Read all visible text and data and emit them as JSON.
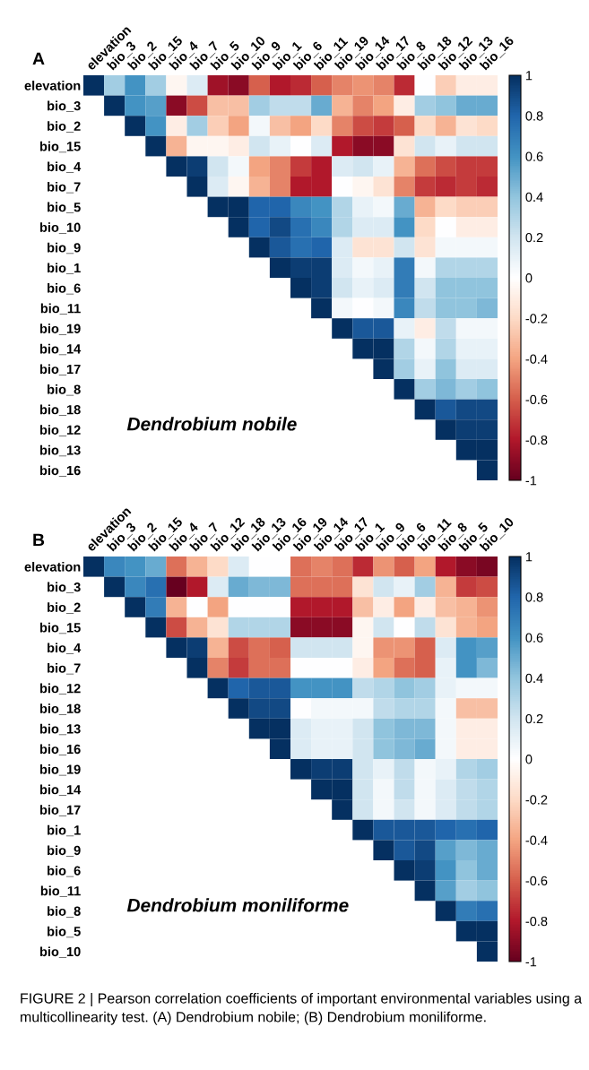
{
  "chart_data": [
    {
      "type": "heatmap",
      "title": "Dendrobium nobile",
      "annotations": [
        "A"
      ],
      "clim": [
        -1,
        1
      ],
      "cticks": [
        -1,
        -0.8,
        -0.6,
        -0.4,
        -0.2,
        0,
        0.2,
        0.4,
        0.6,
        0.8,
        1
      ],
      "categories": [
        "elevation",
        "bio_3",
        "bio_2",
        "bio_15",
        "bio_4",
        "bio_7",
        "bio_5",
        "bio_10",
        "bio_9",
        "bio_1",
        "bio_6",
        "bio_11",
        "bio_19",
        "bio_14",
        "bio_17",
        "bio_8",
        "bio_18",
        "bio_12",
        "bio_13",
        "bio_16"
      ],
      "y_categories": [
        "elevation",
        "bio_3",
        "bio_2",
        "bio_15",
        "bio_4",
        "bio_7",
        "bio_5",
        "bio_10",
        "bio_9",
        "bio_1",
        "bio_6",
        "bio_11",
        "bio_19",
        "bio_14",
        "bio_17",
        "bio_8",
        "bio_18",
        "bio_12",
        "bio_13",
        "bio_16"
      ],
      "cells": [
        [
          1,
          0.35,
          0.6,
          0.35,
          -0.05,
          0.15,
          -0.85,
          -0.9,
          -0.6,
          -0.8,
          -0.75,
          -0.6,
          -0.5,
          -0.45,
          -0.5,
          -0.75,
          0,
          -0.25,
          -0.1,
          -0.1
        ],
        [
          null,
          1,
          0.6,
          0.55,
          -0.9,
          -0.65,
          -0.3,
          -0.3,
          0.35,
          0.25,
          0.25,
          0.5,
          -0.35,
          -0.5,
          -0.4,
          -0.1,
          0.35,
          0.4,
          0.5,
          0.5
        ],
        [
          null,
          null,
          1,
          0.6,
          -0.1,
          0.35,
          -0.25,
          -0.4,
          0.05,
          -0.3,
          -0.4,
          -0.2,
          -0.5,
          -0.65,
          -0.7,
          -0.6,
          -0.2,
          -0.35,
          -0.15,
          -0.2
        ],
        [
          null,
          null,
          null,
          1,
          -0.35,
          -0.05,
          -0.05,
          -0.1,
          0.2,
          0.1,
          0,
          0.15,
          -0.8,
          -0.9,
          -0.9,
          -0.15,
          0.2,
          0.1,
          0.2,
          0.2
        ],
        [
          null,
          null,
          null,
          null,
          1,
          0.95,
          0.2,
          0.05,
          -0.4,
          -0.5,
          -0.7,
          -0.8,
          0.15,
          0.2,
          0.1,
          -0.35,
          -0.55,
          -0.65,
          -0.7,
          -0.7
        ],
        [
          null,
          null,
          null,
          null,
          null,
          1,
          0.15,
          -0.05,
          -0.35,
          -0.5,
          -0.8,
          -0.8,
          0,
          -0.05,
          -0.15,
          -0.5,
          -0.7,
          -0.75,
          -0.7,
          -0.75
        ],
        [
          null,
          null,
          null,
          null,
          null,
          null,
          1,
          1,
          0.8,
          0.8,
          0.65,
          0.6,
          0.3,
          0.1,
          0.05,
          0.5,
          -0.35,
          -0.2,
          -0.25,
          -0.25
        ],
        [
          null,
          null,
          null,
          null,
          null,
          null,
          null,
          1,
          0.8,
          0.9,
          0.75,
          0.65,
          0.3,
          0.15,
          0.15,
          0.6,
          -0.2,
          0,
          -0.1,
          -0.1
        ],
        [
          null,
          null,
          null,
          null,
          null,
          null,
          null,
          null,
          1,
          0.85,
          0.75,
          0.8,
          0.15,
          -0.15,
          -0.15,
          0.2,
          -0.15,
          0.05,
          0.05,
          0.05
        ],
        [
          null,
          null,
          null,
          null,
          null,
          null,
          null,
          null,
          null,
          1,
          0.95,
          0.95,
          0.15,
          0.05,
          0.1,
          0.7,
          0.05,
          0.3,
          0.3,
          0.3
        ],
        [
          null,
          null,
          null,
          null,
          null,
          null,
          null,
          null,
          null,
          null,
          1,
          0.95,
          0.2,
          0.1,
          0.15,
          0.7,
          0.2,
          0.4,
          0.4,
          0.4
        ],
        [
          null,
          null,
          null,
          null,
          null,
          null,
          null,
          null,
          null,
          null,
          null,
          1,
          0.05,
          0,
          0.05,
          0.65,
          0.25,
          0.4,
          0.4,
          0.45
        ],
        [
          null,
          null,
          null,
          null,
          null,
          null,
          null,
          null,
          null,
          null,
          null,
          null,
          1,
          0.85,
          0.85,
          0.1,
          -0.1,
          0.25,
          0.05,
          0.05
        ],
        [
          null,
          null,
          null,
          null,
          null,
          null,
          null,
          null,
          null,
          null,
          null,
          null,
          null,
          1,
          1,
          0.3,
          0.05,
          0.3,
          0.1,
          0.1
        ],
        [
          null,
          null,
          null,
          null,
          null,
          null,
          null,
          null,
          null,
          null,
          null,
          null,
          null,
          null,
          1,
          0.35,
          0.1,
          0.4,
          0.15,
          0.15
        ],
        [
          null,
          null,
          null,
          null,
          null,
          null,
          null,
          null,
          null,
          null,
          null,
          null,
          null,
          null,
          null,
          1,
          0.35,
          0.45,
          0.35,
          0.4
        ],
        [
          null,
          null,
          null,
          null,
          null,
          null,
          null,
          null,
          null,
          null,
          null,
          null,
          null,
          null,
          null,
          null,
          1,
          0.85,
          0.9,
          0.9
        ],
        [
          null,
          null,
          null,
          null,
          null,
          null,
          null,
          null,
          null,
          null,
          null,
          null,
          null,
          null,
          null,
          null,
          null,
          1,
          0.95,
          0.95
        ],
        [
          null,
          null,
          null,
          null,
          null,
          null,
          null,
          null,
          null,
          null,
          null,
          null,
          null,
          null,
          null,
          null,
          null,
          null,
          1,
          1
        ],
        [
          null,
          null,
          null,
          null,
          null,
          null,
          null,
          null,
          null,
          null,
          null,
          null,
          null,
          null,
          null,
          null,
          null,
          null,
          null,
          1
        ]
      ]
    },
    {
      "type": "heatmap",
      "title": "Dendrobium moniliforme",
      "annotations": [
        "B",
        "FIGURE 2 | Pearson correlation coefficients of important environmental variables using a multicollinearity test. (A) Dendrobium nobile; (B) Dendrobium moniliforme."
      ],
      "clim": [
        -1,
        1
      ],
      "cticks": [
        -1,
        -0.8,
        -0.6,
        -0.4,
        -0.2,
        0,
        0.2,
        0.4,
        0.6,
        0.8,
        1
      ],
      "categories": [
        "elevation",
        "bio_3",
        "bio_2",
        "bio_15",
        "bio_4",
        "bio_7",
        "bio_12",
        "bio_18",
        "bio_13",
        "bio_16",
        "bio_19",
        "bio_14",
        "bio_17",
        "bio_1",
        "bio_9",
        "bio_6",
        "bio_11",
        "bio_8",
        "bio_5",
        "bio_10"
      ],
      "y_categories": [
        "elevation",
        "bio_3",
        "bio_2",
        "bio_15",
        "bio_4",
        "bio_7",
        "bio_12",
        "bio_18",
        "bio_13",
        "bio_16",
        "bio_19",
        "bio_14",
        "bio_17",
        "bio_1",
        "bio_9",
        "bio_6",
        "bio_11",
        "bio_8",
        "bio_5",
        "bio_10"
      ],
      "cells": [
        [
          1,
          0.65,
          0.6,
          0.5,
          -0.55,
          -0.35,
          -0.2,
          0.15,
          0,
          0,
          -0.55,
          -0.5,
          -0.55,
          -0.75,
          -0.45,
          -0.6,
          -0.4,
          -0.8,
          -0.9,
          -0.95
        ],
        [
          null,
          1,
          0.65,
          0.75,
          -1,
          -0.8,
          0.15,
          0.5,
          0.45,
          0.45,
          -0.55,
          -0.55,
          -0.55,
          -0.15,
          0.2,
          0.1,
          0.35,
          -0.35,
          -0.7,
          -0.65
        ],
        [
          null,
          null,
          1,
          0.7,
          -0.35,
          0,
          -0.4,
          0,
          0,
          0,
          -0.8,
          -0.8,
          -0.8,
          -0.3,
          -0.1,
          -0.4,
          -0.1,
          -0.3,
          -0.35,
          -0.45
        ],
        [
          null,
          null,
          null,
          1,
          -0.65,
          -0.35,
          -0.15,
          0.3,
          0.3,
          0.3,
          -0.9,
          -0.9,
          -0.9,
          -0.05,
          0.2,
          0,
          0.25,
          -0.15,
          -0.35,
          -0.4
        ],
        [
          null,
          null,
          null,
          null,
          1,
          0.95,
          -0.35,
          -0.65,
          -0.55,
          -0.6,
          0.2,
          0.2,
          0.2,
          -0.05,
          -0.45,
          -0.45,
          -0.6,
          0.15,
          0.6,
          0.55
        ],
        [
          null,
          null,
          null,
          null,
          null,
          1,
          -0.5,
          -0.7,
          -0.55,
          -0.55,
          0,
          0,
          0,
          -0.1,
          -0.4,
          -0.55,
          -0.6,
          0.1,
          0.6,
          0.45
        ],
        [
          null,
          null,
          null,
          null,
          null,
          null,
          1,
          0.8,
          0.85,
          0.85,
          0.6,
          0.6,
          0.6,
          0.25,
          0.3,
          0.4,
          0.35,
          0.1,
          0.05,
          0.05
        ],
        [
          null,
          null,
          null,
          null,
          null,
          null,
          null,
          1,
          0.9,
          0.9,
          0,
          0.05,
          0.05,
          0.05,
          0.25,
          0.3,
          0.3,
          0.05,
          -0.3,
          -0.3
        ],
        [
          null,
          null,
          null,
          null,
          null,
          null,
          null,
          null,
          1,
          1,
          0.15,
          0.1,
          0.1,
          0.2,
          0.4,
          0.45,
          0.45,
          0.05,
          -0.1,
          -0.1
        ],
        [
          null,
          null,
          null,
          null,
          null,
          null,
          null,
          null,
          null,
          1,
          0.15,
          0.1,
          0.1,
          0.2,
          0.4,
          0.45,
          0.5,
          0.05,
          -0.1,
          -0.1
        ],
        [
          null,
          null,
          null,
          null,
          null,
          null,
          null,
          null,
          null,
          null,
          1,
          0.95,
          0.95,
          0.2,
          0.1,
          0.25,
          0.05,
          0.1,
          0.3,
          0.35
        ],
        [
          null,
          null,
          null,
          null,
          null,
          null,
          null,
          null,
          null,
          null,
          null,
          1,
          1,
          0.2,
          0.05,
          0.25,
          0.05,
          0.15,
          0.25,
          0.3
        ],
        [
          null,
          null,
          null,
          null,
          null,
          null,
          null,
          null,
          null,
          null,
          null,
          null,
          1,
          0.2,
          0.05,
          0.2,
          0.05,
          0.15,
          0.25,
          0.3
        ],
        [
          null,
          null,
          null,
          null,
          null,
          null,
          null,
          null,
          null,
          null,
          null,
          null,
          null,
          1,
          0.85,
          0.85,
          0.85,
          0.8,
          0.75,
          0.8
        ],
        [
          null,
          null,
          null,
          null,
          null,
          null,
          null,
          null,
          null,
          null,
          null,
          null,
          null,
          null,
          1,
          0.85,
          0.9,
          0.55,
          0.45,
          0.5
        ],
        [
          null,
          null,
          null,
          null,
          null,
          null,
          null,
          null,
          null,
          null,
          null,
          null,
          null,
          null,
          null,
          1,
          0.95,
          0.6,
          0.4,
          0.5
        ],
        [
          null,
          null,
          null,
          null,
          null,
          null,
          null,
          null,
          null,
          null,
          null,
          null,
          null,
          null,
          null,
          null,
          1,
          0.55,
          0.35,
          0.4
        ],
        [
          null,
          null,
          null,
          null,
          null,
          null,
          null,
          null,
          null,
          null,
          null,
          null,
          null,
          null,
          null,
          null,
          null,
          1,
          0.7,
          0.75
        ],
        [
          null,
          null,
          null,
          null,
          null,
          null,
          null,
          null,
          null,
          null,
          null,
          null,
          null,
          null,
          null,
          null,
          null,
          null,
          1,
          1
        ],
        [
          null,
          null,
          null,
          null,
          null,
          null,
          null,
          null,
          null,
          null,
          null,
          null,
          null,
          null,
          null,
          null,
          null,
          null,
          null,
          1
        ]
      ]
    }
  ]
}
